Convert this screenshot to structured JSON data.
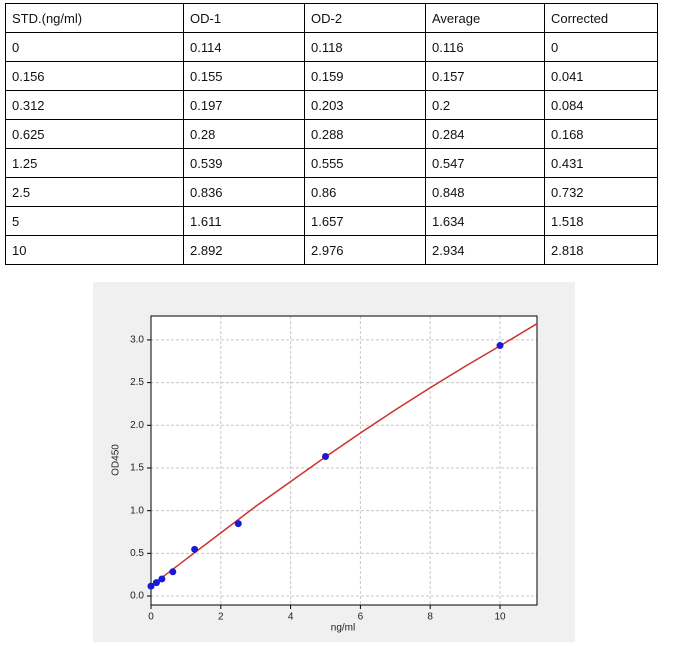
{
  "table": {
    "header": [
      "STD.(ng/ml)",
      "OD-1",
      "OD-2",
      "Average",
      "Corrected"
    ],
    "rows": [
      [
        "0",
        "0.114",
        "0.118",
        "0.116",
        "0"
      ],
      [
        "0.156",
        "0.155",
        "0.159",
        "0.157",
        "0.041"
      ],
      [
        "0.312",
        "0.197",
        "0.203",
        "0.2",
        "0.084"
      ],
      [
        "0.625",
        "0.28",
        "0.288",
        "0.284",
        "0.168"
      ],
      [
        "1.25",
        "0.539",
        "0.555",
        "0.547",
        "0.431"
      ],
      [
        "2.5",
        "0.836",
        "0.86",
        "0.848",
        "0.732"
      ],
      [
        "5",
        "1.611",
        "1.657",
        "1.634",
        "1.518"
      ],
      [
        "10",
        "2.892",
        "2.976",
        "2.934",
        "2.818"
      ]
    ]
  },
  "chart_data": {
    "type": "scatter",
    "x_label": "ng/ml",
    "y_label": "OD450",
    "xlim": [
      0,
      11.06
    ],
    "ylim": [
      -0.105,
      3.28
    ],
    "xticks": [
      0,
      2,
      4,
      6,
      8,
      10
    ],
    "yticks": [
      {
        "value": 0,
        "label": "0.0"
      },
      0.5,
      {
        "value": 1,
        "label": "1.0"
      },
      1.5,
      {
        "value": 2,
        "label": "2.0"
      },
      2.5,
      {
        "value": 3,
        "label": "3.0"
      }
    ],
    "grid": true,
    "series": [
      {
        "type": "line",
        "color": "#d0312d",
        "x": [
          0,
          1,
          2,
          3,
          4,
          5,
          6,
          7,
          8,
          9,
          10,
          11.06
        ],
        "values": [
          0.12,
          0.43,
          0.74,
          1.05,
          1.34,
          1.63,
          1.91,
          2.18,
          2.44,
          2.69,
          2.93,
          3.19
        ]
      },
      {
        "type": "scatter",
        "color": "#1a1ad6",
        "x": [
          0,
          0.156,
          0.312,
          0.625,
          1.25,
          2.5,
          5,
          10
        ],
        "values": [
          0.116,
          0.157,
          0.2,
          0.284,
          0.547,
          0.848,
          1.634,
          2.934
        ]
      }
    ]
  }
}
